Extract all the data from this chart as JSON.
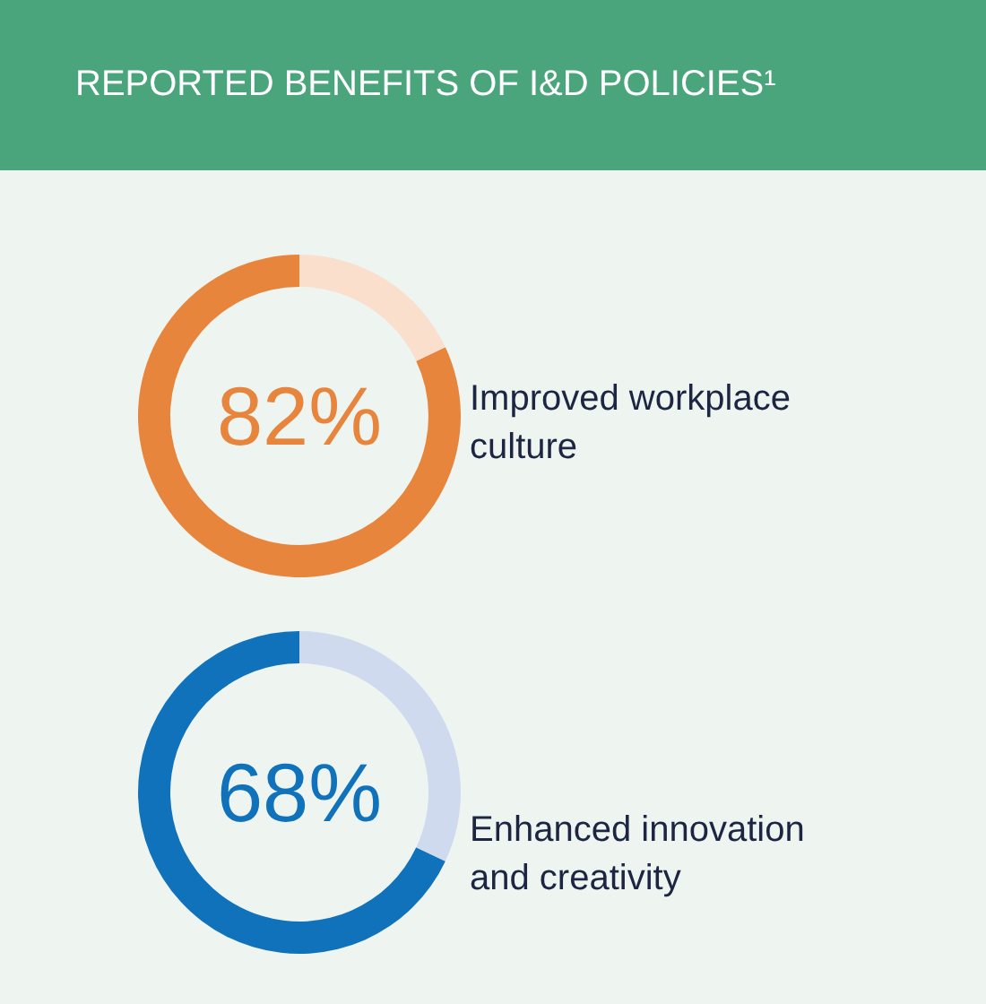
{
  "chart_data": [
    {
      "type": "donut",
      "title": "REPORTED BENEFITS OF I&D POLICIES¹",
      "categories": [
        "Improved workplace culture",
        null
      ],
      "values": [
        82,
        18
      ],
      "colors": [
        "#e8853d",
        "#fadfcc"
      ],
      "value_labels": [
        "82%",
        null
      ]
    },
    {
      "type": "donut",
      "categories": [
        "Enhanced innovation and creativity",
        null
      ],
      "values": [
        68,
        32
      ],
      "colors": [
        "#0f72bb",
        "#d0daef"
      ],
      "value_labels": [
        "68%",
        null
      ]
    }
  ]
}
